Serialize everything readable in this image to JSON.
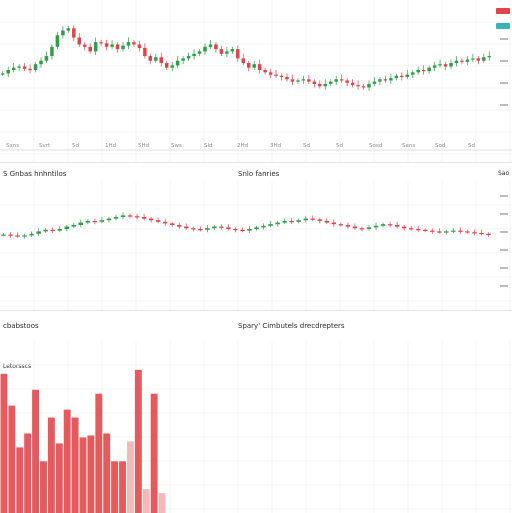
{
  "colors": {
    "up": "#2e9e47",
    "down": "#e0444b",
    "grid": "#ededed",
    "bar": "#e55a5f",
    "barLight": "#f6b9bb",
    "axisText": "#8a8a8a"
  },
  "chart_data": [
    {
      "type": "candlestick",
      "title": "",
      "ylim": [
        0,
        100
      ],
      "grid": true,
      "badges": [
        {
          "color": "#e0444b"
        },
        {
          "color": "#3bb3b6"
        }
      ],
      "x_tick_labels": [
        "Sxns",
        "Svrt",
        "5d",
        "1Hd",
        "5Hd",
        "Sws",
        "Sld",
        "2Hd",
        "3Hd",
        "Sd",
        "5d",
        "Sosd",
        "Sans",
        "Sod",
        "5d"
      ],
      "closes": [
        47,
        50,
        52,
        53,
        51,
        50,
        55,
        58,
        62,
        70,
        80,
        84,
        86,
        78,
        72,
        70,
        66,
        74,
        73,
        70,
        72,
        68,
        71,
        74,
        72,
        69,
        62,
        58,
        61,
        56,
        52,
        54,
        58,
        60,
        62,
        64,
        66,
        70,
        72,
        68,
        64,
        66,
        68,
        60,
        56,
        52,
        55,
        50,
        48,
        46,
        45,
        44,
        42,
        40,
        41,
        42,
        40,
        38,
        36,
        38,
        40,
        42,
        41,
        39,
        37,
        36,
        35,
        38,
        40,
        42,
        41,
        43,
        45,
        44,
        46,
        48,
        50,
        49,
        52,
        54,
        55,
        53,
        56,
        58,
        57,
        59,
        60,
        58,
        61,
        62
      ]
    },
    {
      "type": "candlestick",
      "title": "Snlo fanries",
      "left_label": "S Gnbas hnhntilos",
      "right_label": "Sao",
      "ylim": [
        0,
        100
      ],
      "grid": true,
      "closes": [
        48,
        47,
        46,
        47,
        49,
        52,
        54,
        53,
        55,
        58,
        60,
        63,
        65,
        64,
        66,
        68,
        70,
        72,
        71,
        70,
        68,
        66,
        64,
        62,
        60,
        58,
        56,
        55,
        54,
        56,
        58,
        57,
        55,
        54,
        53,
        55,
        57,
        59,
        61,
        63,
        65,
        64,
        66,
        68,
        67,
        65,
        63,
        61,
        60,
        58,
        56,
        55,
        57,
        59,
        61,
        60,
        58,
        56,
        55,
        54,
        53,
        52,
        51,
        52,
        53,
        52,
        51,
        50,
        49,
        48
      ]
    },
    {
      "type": "bar",
      "title": "Spary' Cimbutels drecdrepters",
      "left_label": "cbabstoos",
      "inner_label": "Letorsscs",
      "ylim": [
        0,
        100
      ],
      "grid": true,
      "values": [
        70,
        54,
        33,
        40,
        62,
        26,
        48,
        35,
        52,
        48,
        38,
        39,
        60,
        40,
        26,
        26,
        36,
        72,
        12,
        60,
        10
      ],
      "highlight": [
        0,
        0,
        0,
        0,
        0,
        0,
        0,
        0,
        0,
        0,
        0,
        0,
        0,
        0,
        0,
        0,
        1,
        0,
        1,
        0,
        1
      ]
    }
  ]
}
